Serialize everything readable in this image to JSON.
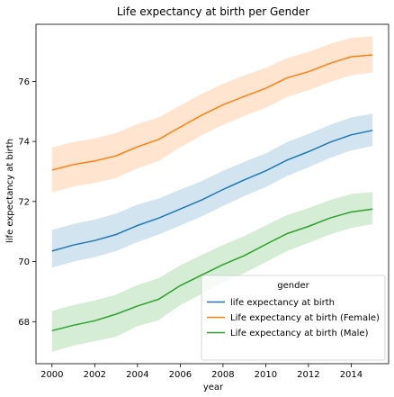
{
  "chart_data": {
    "type": "line",
    "title": "Life expectancy at birth per Gender",
    "xlabel": "year",
    "ylabel": "life expectancy at birth",
    "x": [
      2000,
      2001,
      2002,
      2003,
      2004,
      2005,
      2006,
      2007,
      2008,
      2009,
      2010,
      2011,
      2012,
      2013,
      2014,
      2015
    ],
    "xlim": [
      1999.25,
      2015.75
    ],
    "ylim": [
      66.6,
      77.9
    ],
    "xticks": [
      2000,
      2002,
      2004,
      2006,
      2008,
      2010,
      2012,
      2014
    ],
    "yticks": [
      68,
      70,
      72,
      74,
      76
    ],
    "grid": false,
    "legend": {
      "title": "gender",
      "position": "lower-right"
    },
    "series": [
      {
        "name": "life expectancy at birth",
        "color": "#1f77b4",
        "values": [
          70.35,
          70.55,
          70.7,
          70.9,
          71.2,
          71.45,
          71.75,
          72.05,
          72.4,
          72.72,
          73.02,
          73.38,
          73.66,
          73.97,
          74.22,
          74.37
        ],
        "lower": [
          69.8,
          70.0,
          70.15,
          70.35,
          70.65,
          70.9,
          71.2,
          71.5,
          71.85,
          72.18,
          72.48,
          72.85,
          73.14,
          73.45,
          73.7,
          73.85
        ],
        "upper": [
          71.05,
          71.25,
          71.4,
          71.6,
          71.9,
          72.1,
          72.4,
          72.68,
          73.02,
          73.32,
          73.6,
          73.98,
          74.25,
          74.55,
          74.8,
          74.92
        ]
      },
      {
        "name": "Life expectancy at birth (Female)",
        "color": "#ff7f0e",
        "values": [
          73.05,
          73.23,
          73.35,
          73.52,
          73.82,
          74.07,
          74.48,
          74.87,
          75.22,
          75.5,
          75.77,
          76.12,
          76.32,
          76.6,
          76.82,
          76.88
        ],
        "lower": [
          72.3,
          72.5,
          72.62,
          72.78,
          73.1,
          73.35,
          73.8,
          74.2,
          74.55,
          74.85,
          75.12,
          75.48,
          75.7,
          75.98,
          76.2,
          76.3
        ],
        "upper": [
          73.8,
          73.98,
          74.1,
          74.28,
          74.58,
          74.8,
          75.2,
          75.58,
          75.92,
          76.2,
          76.45,
          76.78,
          76.98,
          77.25,
          77.45,
          77.5
        ]
      },
      {
        "name": "Life expectancy at birth (Male)",
        "color": "#2ca02c",
        "values": [
          67.7,
          67.88,
          68.03,
          68.25,
          68.52,
          68.75,
          69.2,
          69.55,
          69.9,
          70.2,
          70.57,
          70.93,
          71.17,
          71.45,
          71.65,
          71.75
        ],
        "lower": [
          67.0,
          67.2,
          67.35,
          67.5,
          67.85,
          68.05,
          68.55,
          68.92,
          69.3,
          69.62,
          69.98,
          70.35,
          70.62,
          70.9,
          71.12,
          71.25
        ],
        "upper": [
          68.35,
          68.55,
          68.7,
          68.9,
          69.22,
          69.45,
          69.88,
          70.22,
          70.55,
          70.85,
          71.2,
          71.55,
          71.78,
          72.05,
          72.25,
          72.32
        ]
      }
    ]
  }
}
